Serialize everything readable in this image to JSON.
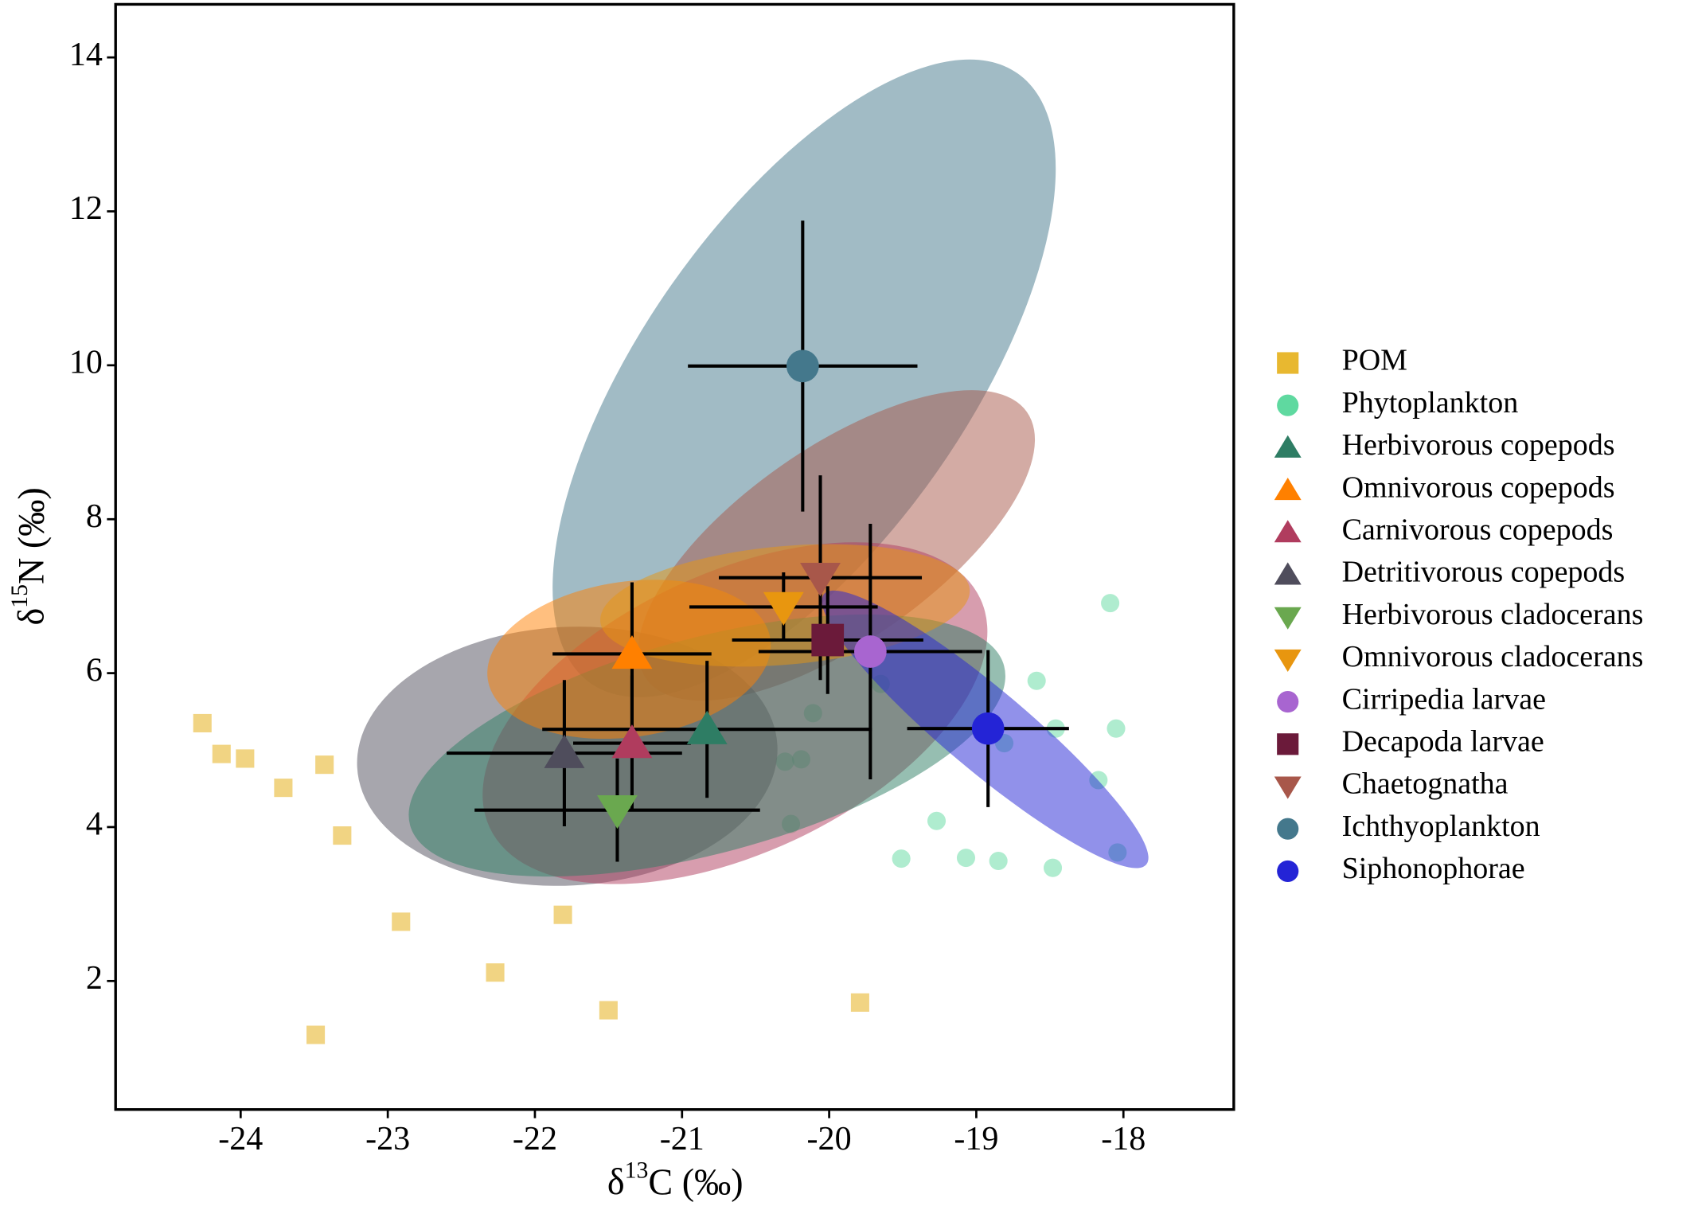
{
  "chart_data": {
    "type": "scatter",
    "xlabel": {
      "symbol": "δ",
      "sup": "13",
      "rest": "C (‰)"
    },
    "ylabel": {
      "symbol": "δ",
      "sup": "15",
      "rest": "N (‰)"
    },
    "xlim": [
      -24.85,
      -17.25
    ],
    "ylim": [
      0.33,
      14.69
    ],
    "xticks": [
      -24,
      -23,
      -22,
      -21,
      -20,
      -19,
      -18
    ],
    "yticks": [
      2,
      4,
      6,
      8,
      10,
      12,
      14
    ],
    "legend": "right",
    "series": [
      {
        "name": "POM",
        "color": "#e8b830",
        "marker": "square",
        "alpha": 0.6,
        "x": [
          -24.26,
          -24.13,
          -23.97,
          -23.71,
          -23.43,
          -23.31,
          -22.91,
          -22.27,
          -21.81,
          -21.5,
          -23.49,
          -19.79
        ],
        "y": [
          5.35,
          4.95,
          4.89,
          4.51,
          4.81,
          3.89,
          2.77,
          2.11,
          2.86,
          1.62,
          1.3,
          1.72
        ]
      },
      {
        "name": "Phytoplankton",
        "color": "#5fd9a0",
        "marker": "circle",
        "alpha": 0.5,
        "x": [
          -18.09,
          -18.59,
          -18.46,
          -18.05,
          -18.17,
          -18.04,
          -18.48,
          -18.85,
          -19.07,
          -19.51,
          -19.27,
          -20.26,
          -20.3,
          -20.19,
          -20.11,
          -19.65,
          -18.81
        ],
        "y": [
          6.91,
          5.9,
          5.28,
          5.28,
          4.61,
          3.67,
          3.47,
          3.56,
          3.6,
          3.59,
          4.08,
          4.04,
          4.85,
          4.88,
          5.48,
          5.86,
          5.09
        ]
      },
      {
        "name": "Herbivorous copepods",
        "color": "#2e7d64",
        "marker": "triangle-up",
        "x": [
          -20.83
        ],
        "y": [
          5.27
        ],
        "xerr": [
          1.12
        ],
        "yerr": [
          0.89
        ],
        "ellipse": {
          "cx": -20.83,
          "cy": 5.06,
          "a": 2.09,
          "b": 1.4,
          "angle": -15
        }
      },
      {
        "name": "Omnivorous copepods",
        "color": "#ff8000",
        "marker": "triangle-up",
        "x": [
          -21.34
        ],
        "y": [
          6.25
        ],
        "xerr": [
          0.54
        ],
        "yerr": [
          0.93
        ],
        "ellipse": {
          "cx": -21.36,
          "cy": 6.18,
          "a": 0.97,
          "b": 1.01,
          "angle": -8
        }
      },
      {
        "name": "Carnivorous copepods",
        "color": "#b03c5e",
        "marker": "triangle-up",
        "x": [
          -21.34
        ],
        "y": [
          5.09
        ],
        "xerr": [
          0.4
        ],
        "yerr": [
          0.88
        ],
        "ellipse": {
          "cx": -20.64,
          "cy": 5.48,
          "a": 1.84,
          "b": 1.82,
          "angle": -25
        }
      },
      {
        "name": "Detritivorous copepods",
        "color": "#4f4d5c",
        "marker": "triangle-up",
        "x": [
          -21.8
        ],
        "y": [
          4.96
        ],
        "xerr": [
          0.8
        ],
        "yerr": [
          0.95
        ],
        "ellipse": {
          "cx": -21.78,
          "cy": 4.92,
          "a": 1.43,
          "b": 1.68,
          "angle": -3
        }
      },
      {
        "name": "Herbivorous cladocerans",
        "color": "#6aa84f",
        "marker": "triangle-down",
        "x": [
          -21.44
        ],
        "y": [
          4.22
        ],
        "xerr": [
          0.97
        ],
        "yerr": [
          0.67
        ]
      },
      {
        "name": "Omnivorous cladocerans",
        "color": "#e8960f",
        "marker": "triangle-down",
        "x": [
          -20.31
        ],
        "y": [
          6.86
        ],
        "xerr": [
          0.64
        ],
        "yerr": [
          0.45
        ],
        "ellipse": {
          "cx": -20.3,
          "cy": 6.88,
          "a": 1.26,
          "b": 0.77,
          "angle": -5
        }
      },
      {
        "name": "Cirripedia larvae",
        "color": "#a865d0",
        "marker": "circle",
        "x": [
          -19.72
        ],
        "y": [
          6.28
        ],
        "xerr": [
          0.76
        ],
        "yerr": [
          1.66
        ]
      },
      {
        "name": "Decapoda larvae",
        "color": "#6b1a3a",
        "marker": "square",
        "x": [
          -20.01
        ],
        "y": [
          6.43
        ],
        "xerr": [
          0.65
        ],
        "yerr": [
          0.7
        ]
      },
      {
        "name": "Chaetognatha",
        "color": "#a8574a",
        "marker": "triangle-down",
        "x": [
          -20.06
        ],
        "y": [
          7.24
        ],
        "xerr": [
          0.69
        ],
        "yerr": [
          1.33
        ],
        "ellipse": {
          "cx": -19.95,
          "cy": 7.66,
          "a": 1.58,
          "b": 1.26,
          "angle": -35
        }
      },
      {
        "name": "Ichthyoplankton",
        "color": "#44788c",
        "marker": "circle",
        "x": [
          -20.18
        ],
        "y": [
          9.99
        ],
        "xerr": [
          0.78
        ],
        "yerr": [
          1.89
        ],
        "ellipse": {
          "cx": -20.17,
          "cy": 9.83,
          "a": 2.53,
          "b": 2.11,
          "angle": -55
        }
      },
      {
        "name": "Siphonophorae",
        "color": "#2424d6",
        "marker": "circle",
        "x": [
          -18.92
        ],
        "y": [
          5.28
        ],
        "xerr": [
          0.55
        ],
        "yerr": [
          1.02
        ],
        "ellipse": {
          "cx": -18.94,
          "cy": 5.27,
          "a": 1.43,
          "b": 0.53,
          "angle": 40
        }
      }
    ]
  }
}
